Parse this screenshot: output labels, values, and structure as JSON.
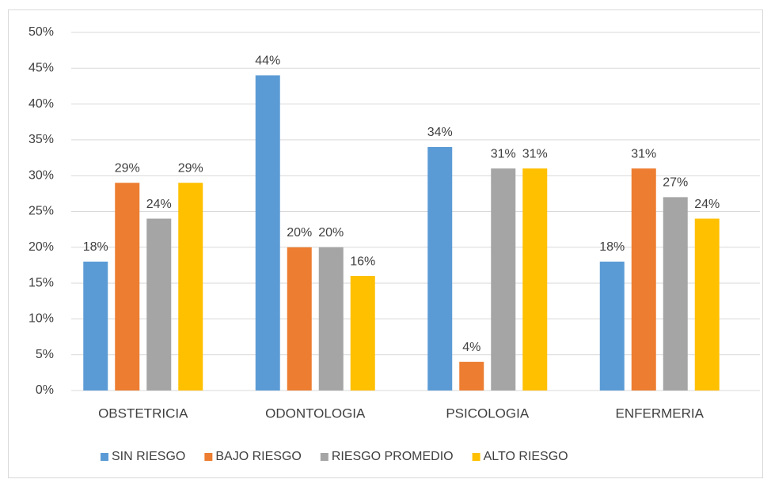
{
  "chart_data": {
    "type": "bar",
    "categories": [
      "OBSTETRICIA",
      "ODONTOLOGIA",
      "PSICOLOGIA",
      "ENFERMERIA"
    ],
    "series": [
      {
        "name": "SIN RIESGO",
        "color": "#5b9bd5",
        "values": [
          18,
          44,
          34,
          18
        ],
        "value_labels": [
          "18%",
          "44%",
          "34%",
          "18%"
        ]
      },
      {
        "name": "BAJO RIESGO",
        "color": "#ed7d31",
        "values": [
          29,
          20,
          4,
          31
        ],
        "value_labels": [
          "29%",
          "20%",
          "4%",
          "31%"
        ]
      },
      {
        "name": "RIESGO PROMEDIO",
        "color": "#a5a5a5",
        "values": [
          24,
          20,
          31,
          27
        ],
        "value_labels": [
          "24%",
          "20%",
          "31%",
          "27%"
        ]
      },
      {
        "name": "ALTO RIESGO",
        "color": "#ffc000",
        "values": [
          29,
          16,
          31,
          24
        ],
        "value_labels": [
          "29%",
          "16%",
          "31%",
          "24%"
        ]
      }
    ],
    "ylim": [
      0,
      50
    ],
    "yticks": [
      {
        "value": 0,
        "label": "0%"
      },
      {
        "value": 5,
        "label": "5%"
      },
      {
        "value": 10,
        "label": "10%"
      },
      {
        "value": 15,
        "label": "15%"
      },
      {
        "value": 20,
        "label": "20%"
      },
      {
        "value": 25,
        "label": "25%"
      },
      {
        "value": 30,
        "label": "30%"
      },
      {
        "value": 35,
        "label": "35%"
      },
      {
        "value": 40,
        "label": "40%"
      },
      {
        "value": 45,
        "label": "45%"
      },
      {
        "value": 50,
        "label": "50%"
      }
    ],
    "grid": true,
    "legend": "bottom"
  }
}
